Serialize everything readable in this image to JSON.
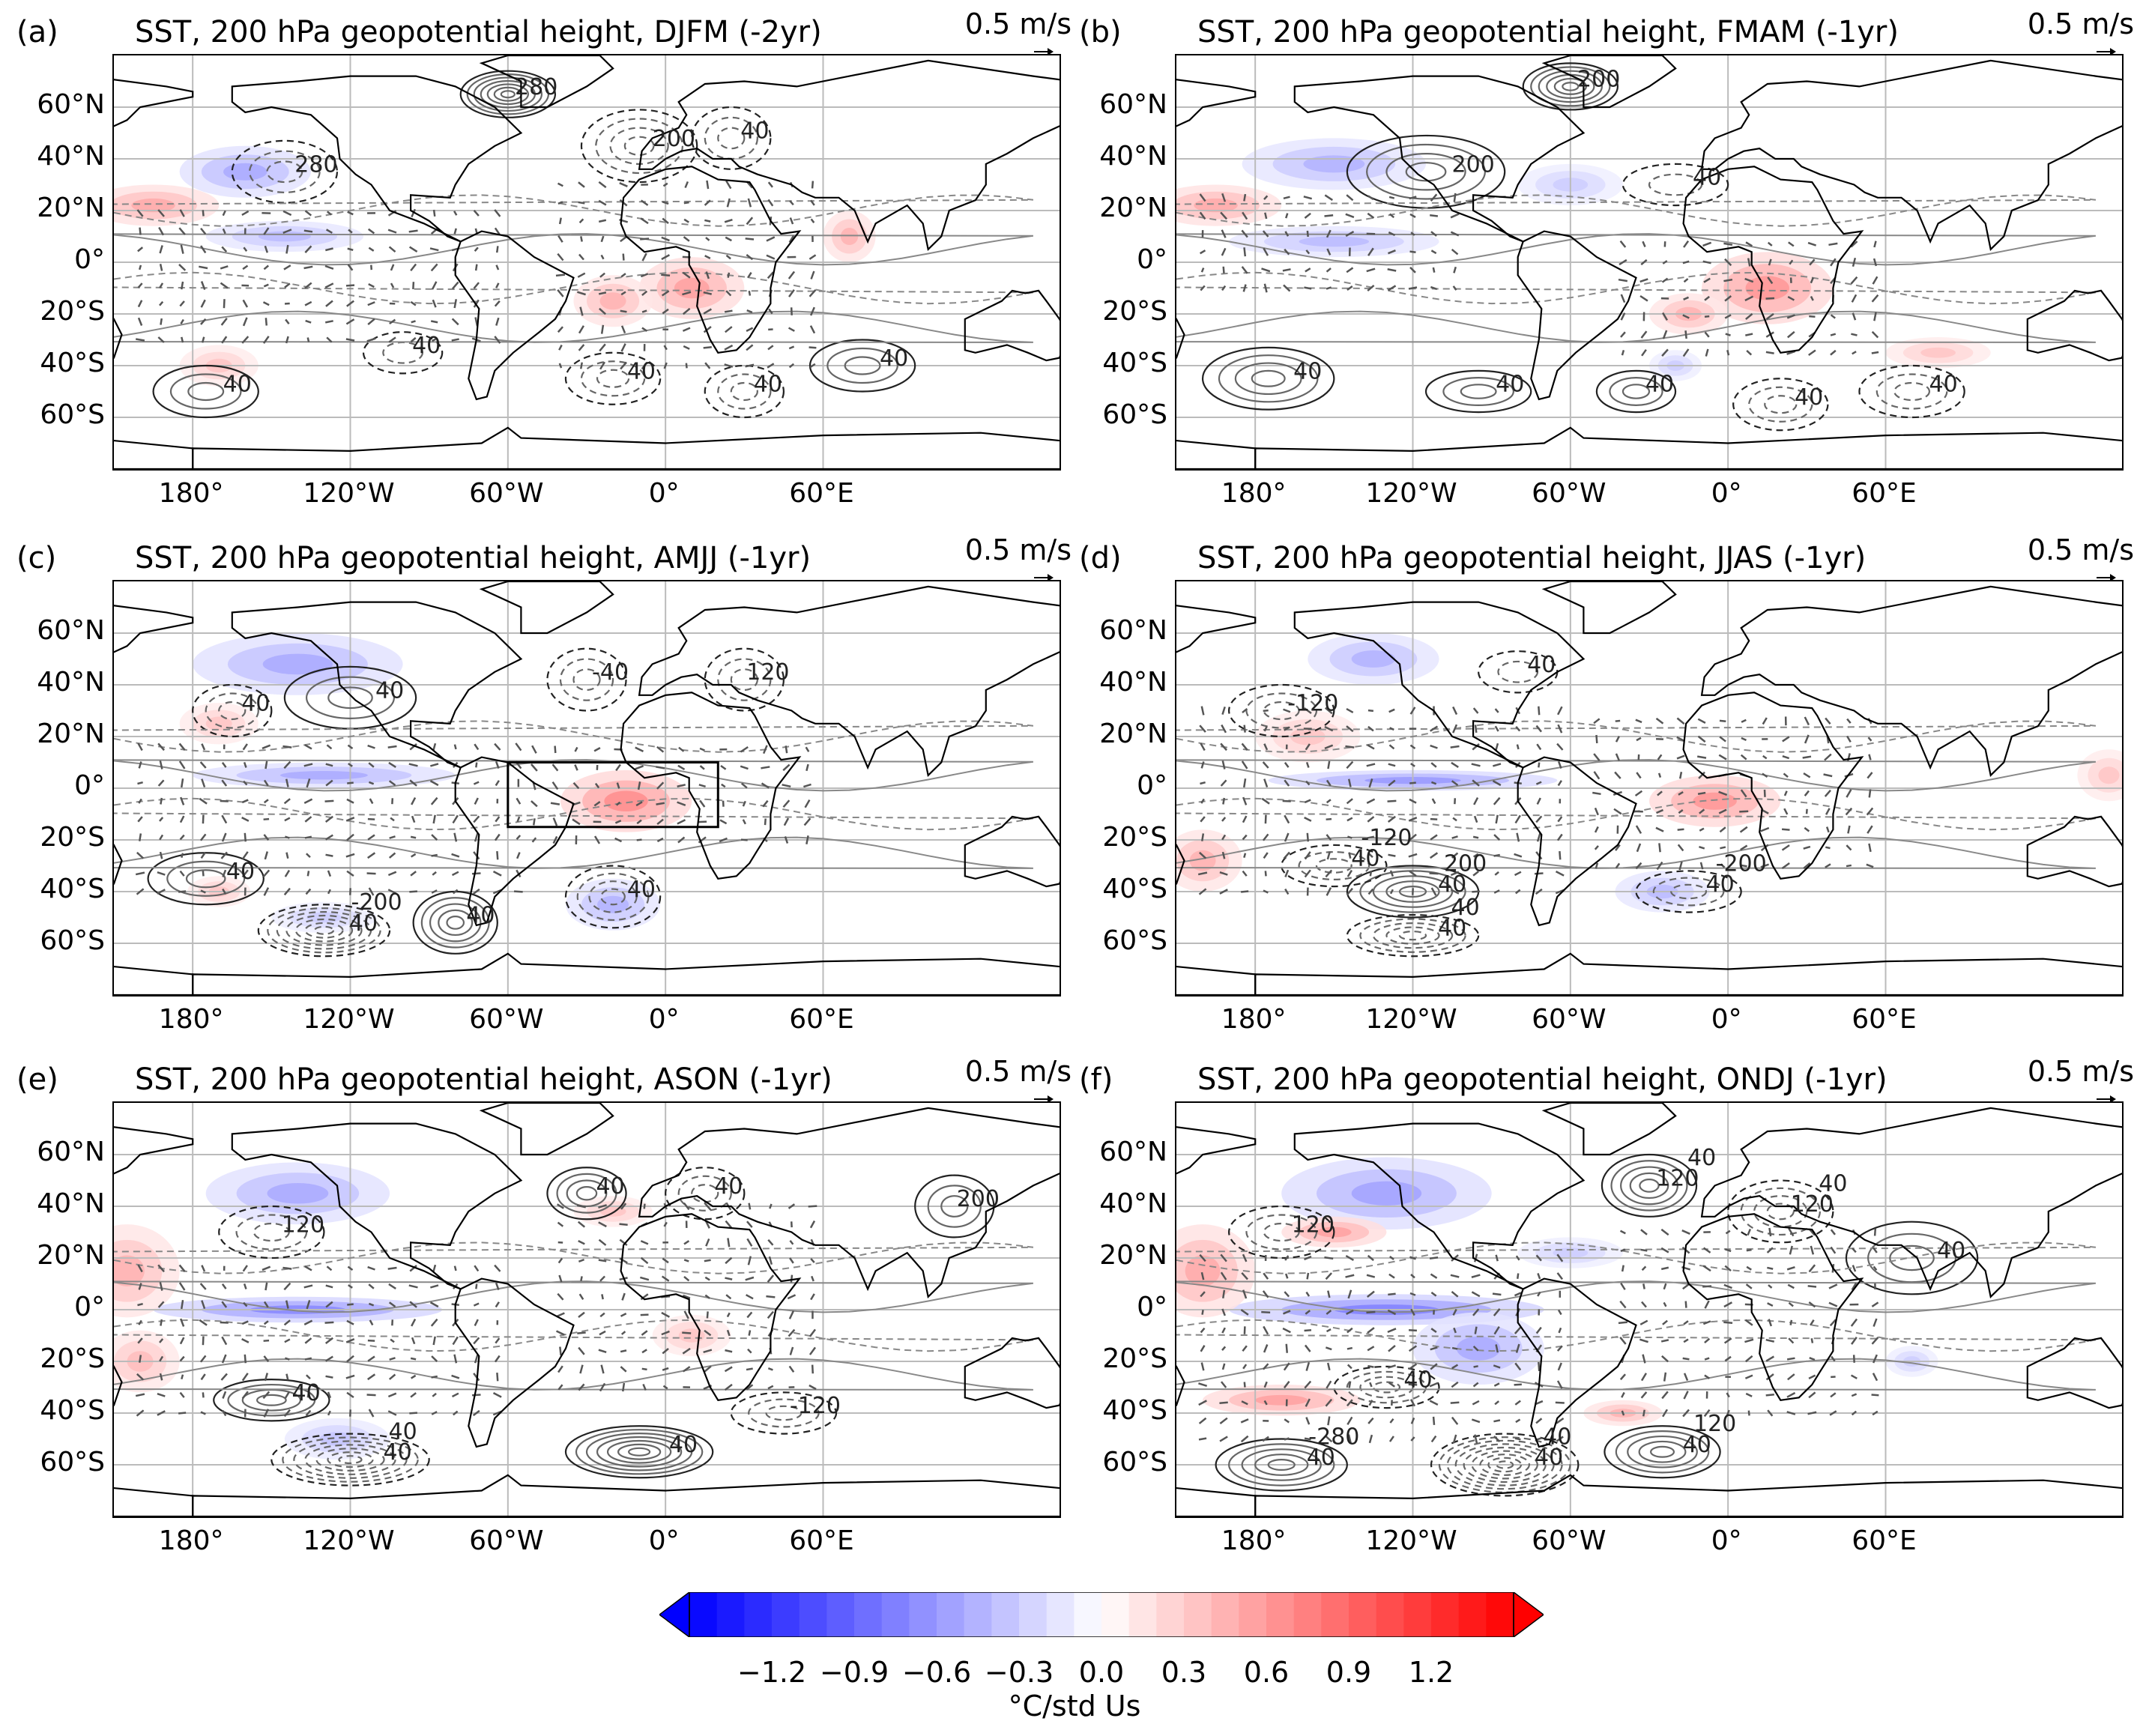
{
  "panels": [
    {
      "id": "a",
      "label": "(a)",
      "title": "SST, 200 hPa geopotential height, DJFM (-2yr)",
      "scale": "0.5 m/s",
      "contour_labels": [
        "280",
        "280",
        "200",
        "40",
        "40",
        "40",
        "40",
        "40",
        "40"
      ],
      "box": false
    },
    {
      "id": "b",
      "label": "(b)",
      "title": "SST, 200 hPa geopotential height, FMAM (-1yr)",
      "scale": "0.5 m/s",
      "contour_labels": [
        "200",
        "200",
        "40",
        "40",
        "40",
        "40",
        "40",
        "40"
      ],
      "box": false
    },
    {
      "id": "c",
      "label": "(c)",
      "title": "SST, 200 hPa geopotential height, AMJJ (-1yr)",
      "scale": "0.5 m/s",
      "contour_labels": [
        "40",
        "40",
        "40",
        "40",
        "40",
        "40",
        "-40",
        "120",
        "-200"
      ],
      "box": true
    },
    {
      "id": "d",
      "label": "(d)",
      "title": "SST, 200 hPa geopotential height, JJAS (-1yr)",
      "scale": "0.5 m/s",
      "contour_labels": [
        "40",
        "40",
        "40",
        "40",
        "40",
        "-120",
        "200",
        "40",
        "-200",
        "-120"
      ],
      "box": false
    },
    {
      "id": "e",
      "label": "(e)",
      "title": "SST, 200 hPa geopotential height, ASON (-1yr)",
      "scale": "0.5 m/s",
      "contour_labels": [
        "40",
        "40",
        "40",
        "40",
        "40",
        "120",
        "-120",
        "200",
        "40"
      ],
      "box": false
    },
    {
      "id": "f",
      "label": "(f)",
      "title": "SST, 200 hPa geopotential height, ONDJ (-1yr)",
      "scale": "0.5 m/s",
      "contour_labels": [
        "40",
        "40",
        "40",
        "120",
        "120",
        "40",
        "40",
        "120",
        "40",
        "-280",
        "120",
        "40",
        "40"
      ],
      "box": false
    }
  ],
  "lat_ticks": [
    "60°N",
    "40°N",
    "20°N",
    "0°",
    "20°S",
    "40°S",
    "60°S"
  ],
  "lon_ticks": [
    "180°",
    "120°W",
    "60°W",
    "0°",
    "60°E"
  ],
  "colorbar": {
    "ticks": [
      "−1.2",
      "−0.9",
      "−0.6",
      "−0.3",
      "0.0",
      "0.3",
      "0.6",
      "0.9",
      "1.2"
    ],
    "label": "°C/std Us",
    "min_color": "#0000ff",
    "mid_color": "#ffffff",
    "max_color": "#ff0000"
  }
}
